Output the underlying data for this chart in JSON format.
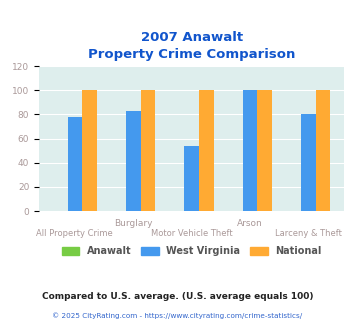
{
  "title_line1": "2007 Anawalt",
  "title_line2": "Property Crime Comparison",
  "groups": [
    "All Property Crime",
    "Burglary",
    "Motor Vehicle Theft",
    "Arson",
    "Larceny & Theft"
  ],
  "anawalt": [
    0,
    0,
    0,
    0,
    0
  ],
  "west_virginia": [
    78,
    83,
    54,
    100,
    80
  ],
  "national": [
    100,
    100,
    100,
    100,
    100
  ],
  "color_anawalt": "#77cc44",
  "color_wv": "#4499ee",
  "color_national": "#ffaa33",
  "ylim": [
    0,
    120
  ],
  "yticks": [
    0,
    20,
    40,
    60,
    80,
    100,
    120
  ],
  "xlabel_top_labels": [
    "Burglary",
    "Arson"
  ],
  "xlabel_top_positions": [
    1,
    3
  ],
  "xlabel_bottom_labels": [
    "All Property Crime",
    "Motor Vehicle Theft",
    "Larceny & Theft"
  ],
  "xlabel_bottom_positions": [
    0,
    2,
    4
  ],
  "bg_color": "#deeeed",
  "legend_labels": [
    "Anawalt",
    "West Virginia",
    "National"
  ],
  "footnote1": "Compared to U.S. average. (U.S. average equals 100)",
  "footnote2": "© 2025 CityRating.com - https://www.cityrating.com/crime-statistics/",
  "title_color": "#1155cc",
  "axis_label_color": "#aa9999",
  "footnote1_color": "#222222",
  "footnote2_color": "#3366cc",
  "title_fontsize": 9.5,
  "bar_width": 0.25,
  "legend_fontsize": 7.0,
  "footnote1_fontsize": 6.5,
  "footnote2_fontsize": 5.2,
  "ytick_fontsize": 6.5
}
